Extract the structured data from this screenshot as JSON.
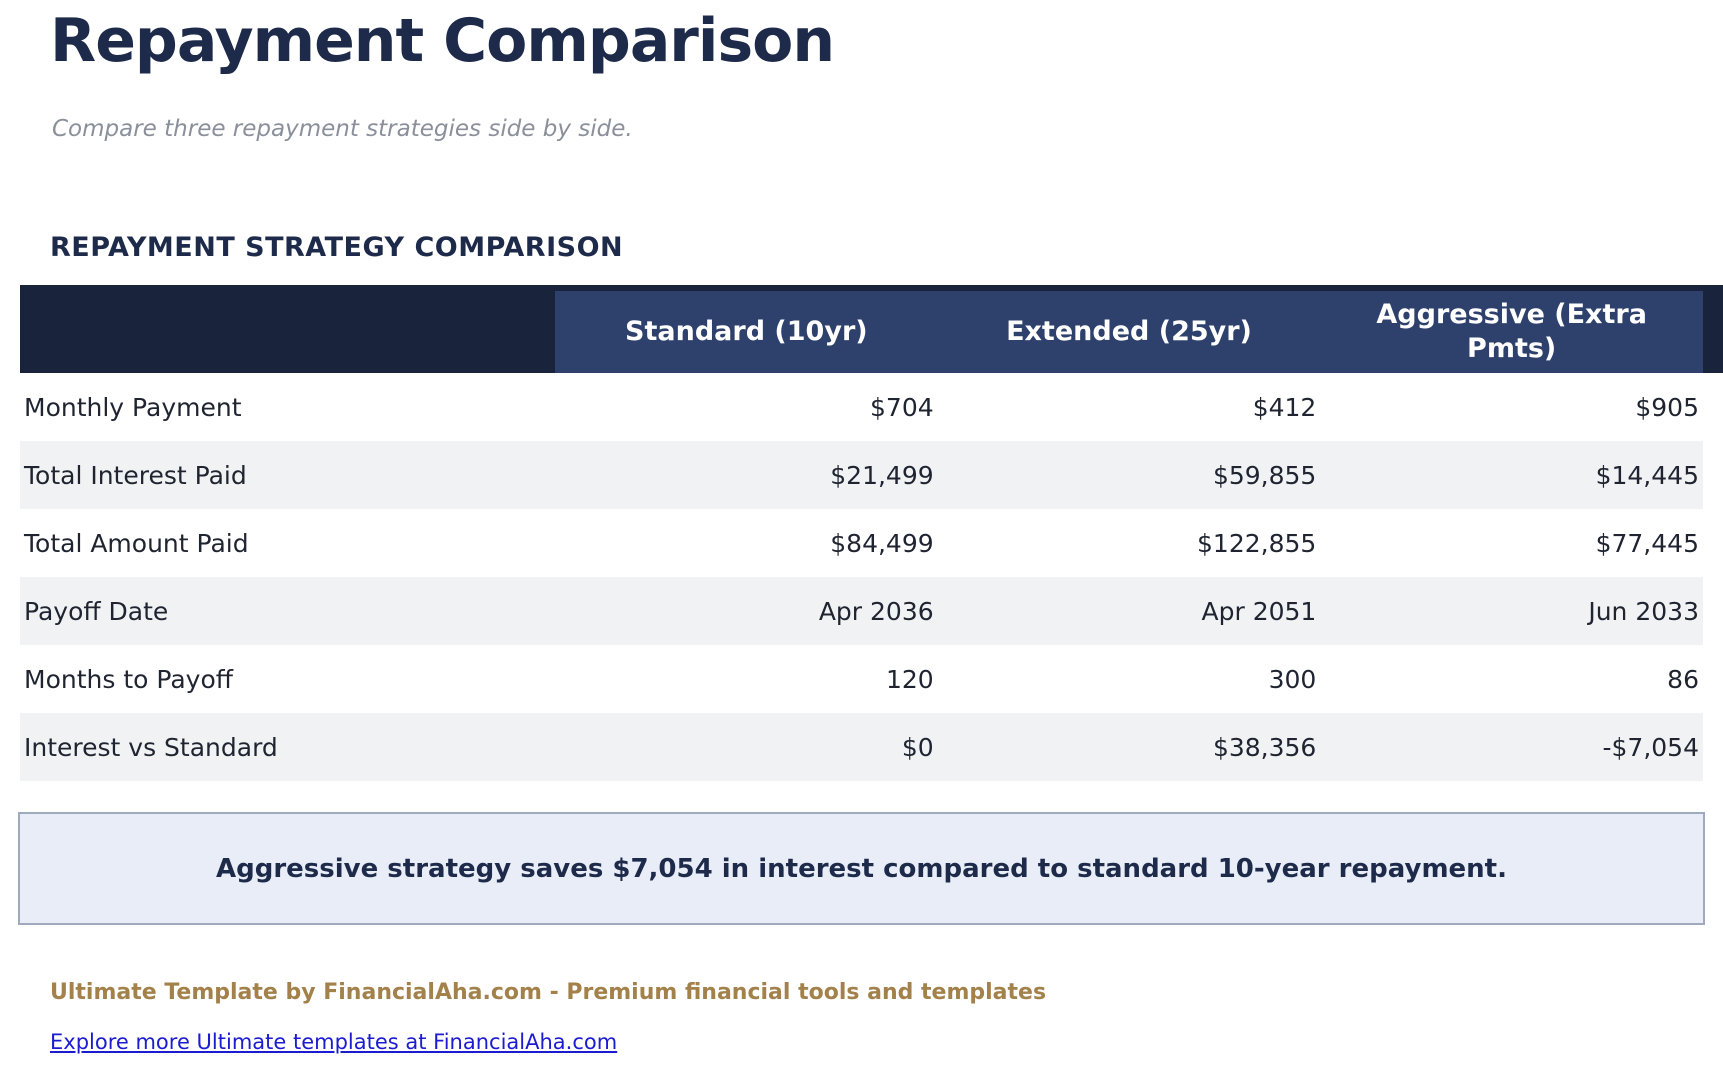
{
  "page": {
    "title": "Repayment Comparison",
    "subtitle": "Compare three repayment strategies side by side."
  },
  "section": {
    "heading": "REPAYMENT STRATEGY COMPARISON"
  },
  "table": {
    "columns": [
      "Standard (10yr)",
      "Extended (25yr)",
      "Aggressive (Extra Pmts)"
    ],
    "rows": [
      {
        "label": "Monthly Payment",
        "values": [
          "$704",
          "$412",
          "$905"
        ]
      },
      {
        "label": "Total Interest Paid",
        "values": [
          "$21,499",
          "$59,855",
          "$14,445"
        ]
      },
      {
        "label": "Total Amount Paid",
        "values": [
          "$84,499",
          "$122,855",
          "$77,445"
        ]
      },
      {
        "label": "Payoff Date",
        "values": [
          "Apr 2036",
          "Apr 2051",
          "Jun 2033"
        ]
      },
      {
        "label": "Months to Payoff",
        "values": [
          "120",
          "300",
          "86"
        ]
      },
      {
        "label": "Interest vs Standard",
        "values": [
          "$0",
          "$38,356",
          "-$7,054"
        ]
      }
    ]
  },
  "callout": {
    "text": "Aggressive strategy saves $7,054 in interest compared to standard 10-year repayment."
  },
  "footer": {
    "brand": "Ultimate Template by FinancialAha.com - Premium financial tools and templates",
    "link": "Explore more Ultimate templates at FinancialAha.com"
  },
  "colors": {
    "header_dark": "#19233c",
    "header_light": "#2e416d",
    "row_alt": "#f0f2f4",
    "callout_bg": "#e8edf7",
    "callout_border": "#a0a9bd",
    "accent_text": "#1d2a4a",
    "brand_gold": "#a3814a",
    "link_blue": "#1b1bd0"
  }
}
